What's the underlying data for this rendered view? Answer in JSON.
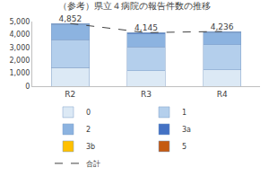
{
  "chart_data": {
    "type": "bar",
    "title": "（参考）県立４病院の報告件数の推移",
    "categories": [
      "R2",
      "R3",
      "R4"
    ],
    "stacked": true,
    "data_labels": true,
    "legend": "bottom",
    "grid": false,
    "ylim": [
      0,
      5000
    ],
    "yticks": [
      0,
      {
        "value": 1000,
        "label": "1,000"
      },
      {
        "value": 2000,
        "label": "2,000"
      },
      {
        "value": 3000,
        "label": "3,000"
      },
      {
        "value": 4000,
        "label": "4,000"
      },
      {
        "value": 5000,
        "label": "5,000"
      }
    ],
    "series": [
      {
        "name": "0",
        "color": "#dce9f5",
        "values": [
          1430,
          1200,
          1280
        ]
      },
      {
        "name": "1",
        "color": "#b4cfec",
        "values": [
          2170,
          1850,
          1940
        ]
      },
      {
        "name": "2",
        "color": "#8cb3e0",
        "values": [
          1160,
          1000,
          930
        ]
      },
      {
        "name": "3a",
        "color": "#4472c4",
        "values": [
          85,
          90,
          80
        ]
      },
      {
        "name": "3b",
        "color": "#ffc000",
        "values": [
          5,
          3,
          4
        ]
      },
      {
        "name": "5",
        "color": "#c55a11",
        "values": [
          2,
          2,
          2
        ]
      },
      {
        "name": "合計",
        "type": "line",
        "color": "#404040",
        "line_style": "dashed",
        "marker": "none",
        "values": [
          4852,
          4145,
          4236
        ],
        "value_labels": [
          "4,852",
          "4,145",
          "4,236"
        ]
      }
    ]
  }
}
